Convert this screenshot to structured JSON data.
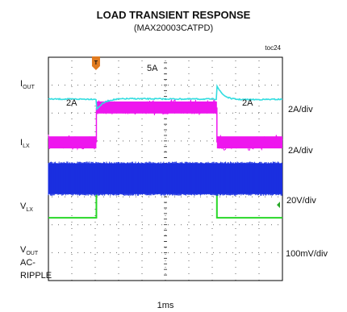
{
  "title": "LOAD TRANSIENT RESPONSE",
  "subtitle": "(MAX20003CATPD)",
  "figure_id": "toc24",
  "colors": {
    "background": "#ffffff",
    "graticule": "#000000",
    "grid_dots": "#666666",
    "i_out": "#27d827",
    "i_lx": "#ee16ee",
    "v_lx": "#1a2fe0",
    "v_out": "#33dde0",
    "trigger_marker": "#e07b20",
    "level_marker": "#27a827"
  },
  "chart_data": {
    "type": "line",
    "title": "LOAD TRANSIENT RESPONSE",
    "subtitle": "(MAX20003CATPD)",
    "x_axis": {
      "divisions": 10,
      "label": "1ms",
      "per_div": "1ms"
    },
    "y_axis": {
      "divisions": 8
    },
    "grid": true,
    "trigger_marker": "T",
    "channels": [
      {
        "name_main": "I",
        "name_sub": "OUT",
        "scale": "2A/div",
        "step_low_label": "2A",
        "step_high_label": "5A",
        "step_start_div": 2.05,
        "step_end_div": 7.2,
        "baseline_div": 2.25,
        "high_div": 3.75,
        "noise": 0.02
      },
      {
        "name_main": "I",
        "name_sub": "LX",
        "scale": "2A/div",
        "step_start_div": 2.05,
        "step_end_div": 7.2,
        "baseline_div": 4.95,
        "high_div": 6.2,
        "noise": 0.18
      },
      {
        "name_main": "V",
        "name_sub": "LX",
        "scale": "20V/div",
        "center_div": 3.65,
        "band_half_height": 0.55
      },
      {
        "name_main": "V",
        "name_sub": "OUT",
        "extra_lines": [
          "AC-",
          "RIPPLE"
        ],
        "scale": "100mV/div",
        "baseline_div": 6.5,
        "undershoot_div": 2.05,
        "undershoot_depth": 0.45,
        "overshoot_div": 7.2,
        "overshoot_height": 0.55,
        "noise": 0.02
      }
    ]
  }
}
